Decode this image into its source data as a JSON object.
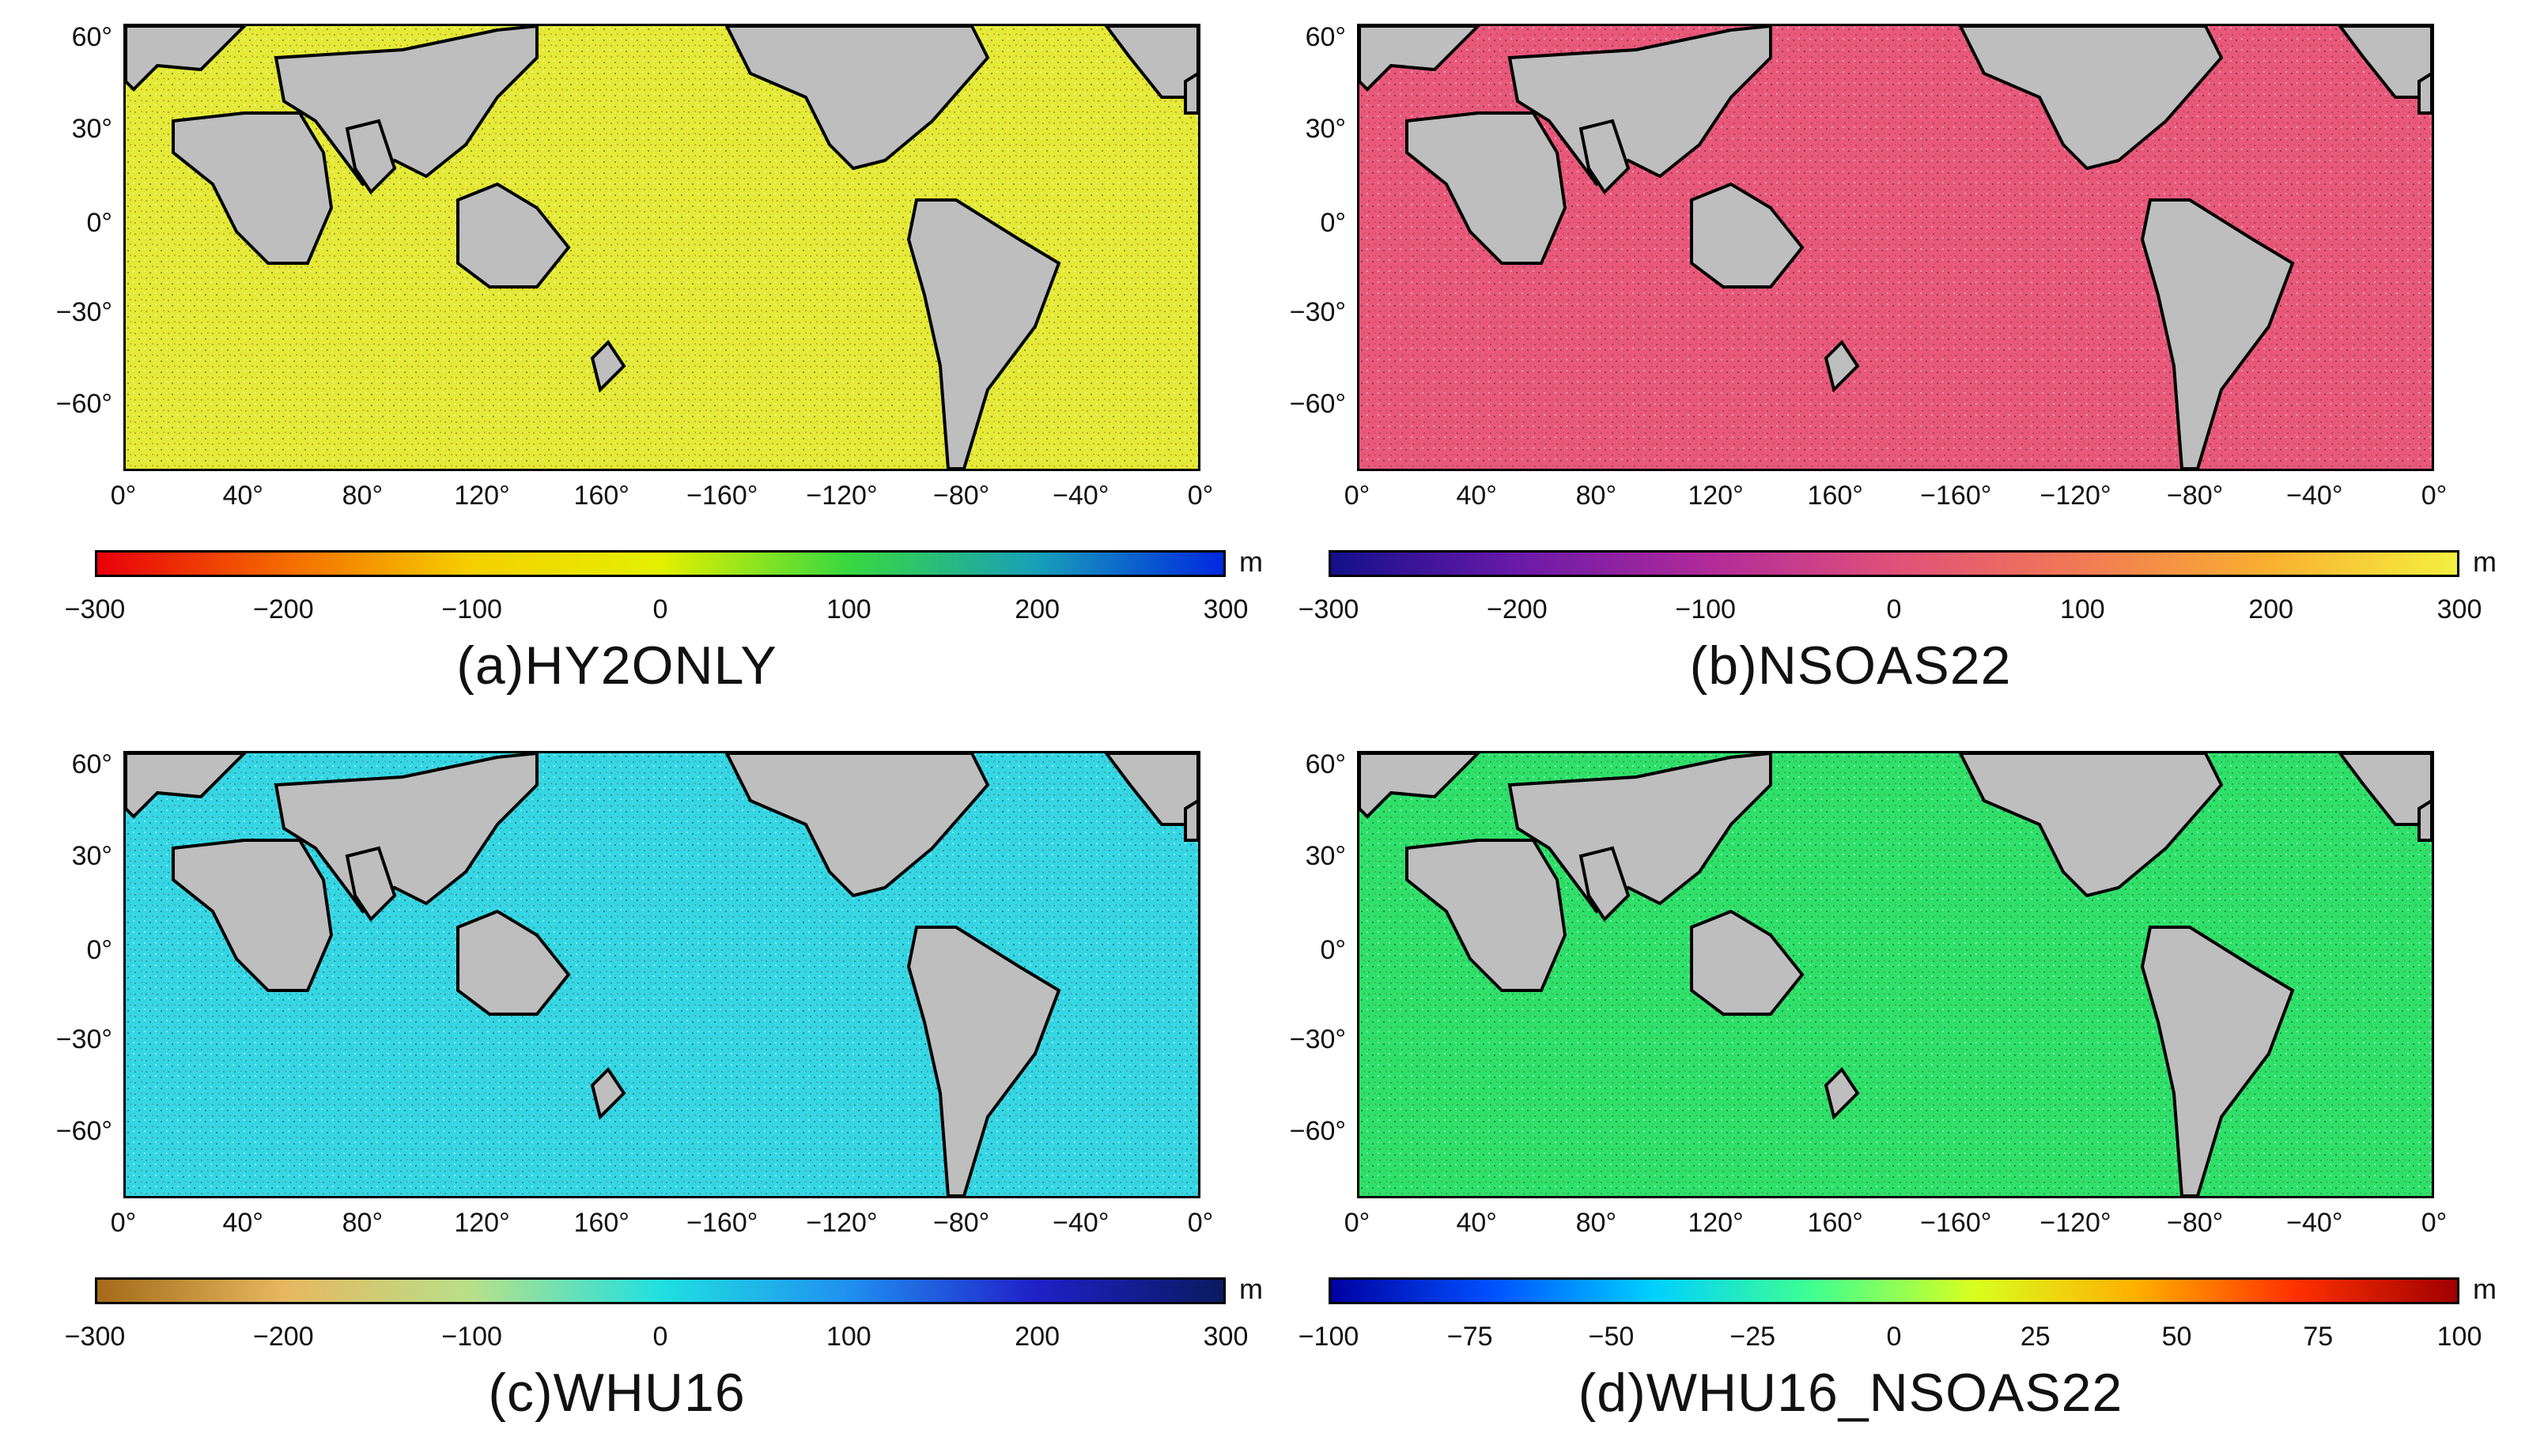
{
  "panels": [
    {
      "title": "(a)HY2ONLY",
      "ocean_color": "#e4ea37",
      "colorbar": {
        "unit": "m",
        "ticks": [
          "−300",
          "−200",
          "−100",
          "0",
          "100",
          "200",
          "300"
        ],
        "range": [
          -300,
          300
        ],
        "colors": [
          "#e8000b",
          "#f46a00",
          "#f5d000",
          "#e4f000",
          "#38d840",
          "#18a0b8",
          "#0028e0"
        ]
      }
    },
    {
      "title": "(b)NSOAS22",
      "ocean_color": "#e8587a",
      "colorbar": {
        "unit": "m",
        "ticks": [
          "−300",
          "−200",
          "−100",
          "0",
          "100",
          "200",
          "300"
        ],
        "range": [
          -300,
          300
        ],
        "colors": [
          "#14108a",
          "#6a1aa8",
          "#b02a9a",
          "#e0507a",
          "#f27a55",
          "#f9b030",
          "#f4f040"
        ]
      }
    },
    {
      "title": "(c)WHU16",
      "ocean_color": "#35d6e4",
      "colorbar": {
        "unit": "m",
        "ticks": [
          "−300",
          "−200",
          "−100",
          "0",
          "100",
          "200",
          "300"
        ],
        "range": [
          -300,
          300
        ],
        "colors": [
          "#a46a18",
          "#e6b860",
          "#b8e08a",
          "#20e0e0",
          "#2090f0",
          "#2020c8",
          "#0a1a60"
        ]
      }
    },
    {
      "title": "(d)WHU16_NSOAS22",
      "ocean_color": "#2ee06a",
      "colorbar": {
        "unit": "m",
        "ticks": [
          "−100",
          "−75",
          "−50",
          "−25",
          "0",
          "25",
          "50",
          "75",
          "100"
        ],
        "range": [
          -100,
          100
        ],
        "colors": [
          "#0000a0",
          "#0050ff",
          "#00d0ff",
          "#40ff90",
          "#d8ff20",
          "#ffb000",
          "#ff3000",
          "#a00000"
        ]
      }
    }
  ],
  "lat_ticks": [
    "60°",
    "30°",
    "0°",
    "−30°",
    "−60°"
  ],
  "lon_ticks": [
    "0°",
    "40°",
    "80°",
    "120°",
    "160°",
    "−160°",
    "−120°",
    "−80°",
    "−40°",
    "0°"
  ],
  "land_color": "#bebebe"
}
